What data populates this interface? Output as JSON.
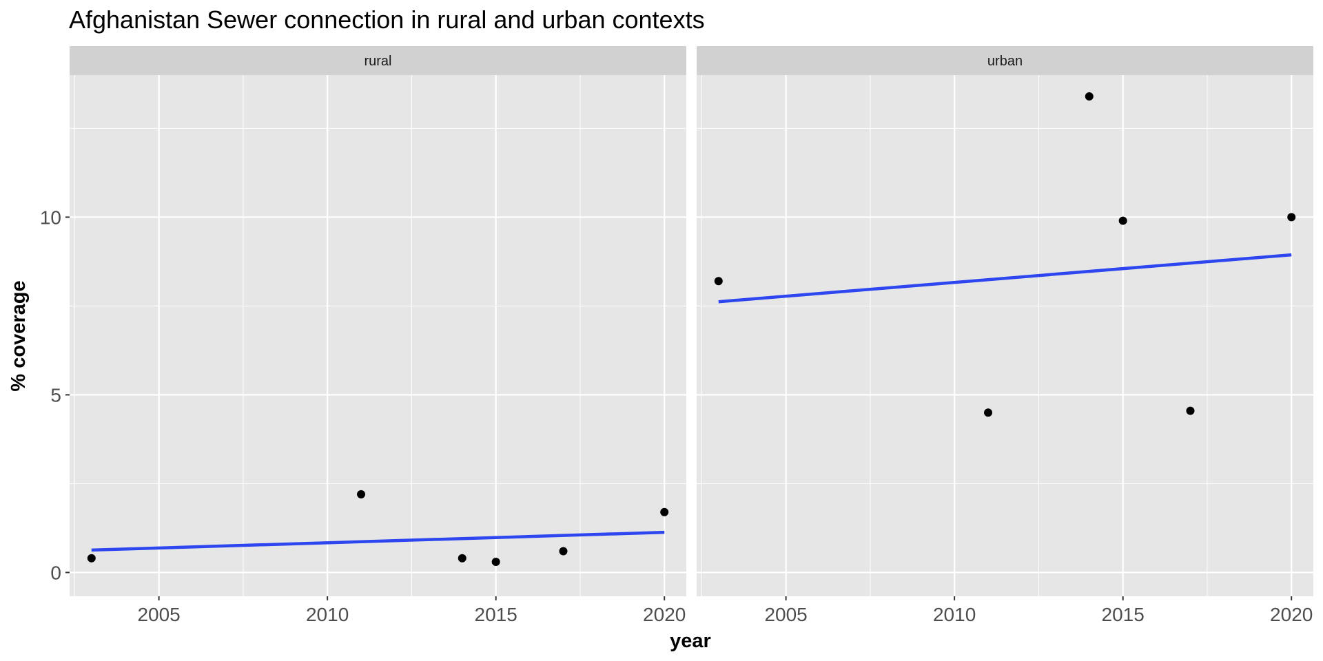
{
  "chart_data": {
    "type": "scatter",
    "title": "Afghanistan Sewer connection in rural and urban contexts",
    "xlabel": "year",
    "ylabel": "% coverage",
    "xlim": [
      2002.35,
      2020.65
    ],
    "ylim": [
      -0.67,
      14.0
    ],
    "x_ticks": [
      2005,
      2010,
      2015,
      2020
    ],
    "y_ticks": [
      0,
      5,
      10
    ],
    "grid": true,
    "panel_background": "#e6e6e6",
    "strip_background": "#d1d1d1",
    "point_color": "#000000",
    "trend_color": "#2e46f0",
    "panels": [
      {
        "label": "rural",
        "points": [
          {
            "x": 2003,
            "y": 0.4
          },
          {
            "x": 2011,
            "y": 2.2
          },
          {
            "x": 2014,
            "y": 0.4
          },
          {
            "x": 2015,
            "y": 0.3
          },
          {
            "x": 2017,
            "y": 0.6
          },
          {
            "x": 2020,
            "y": 1.7
          }
        ],
        "trend": [
          {
            "x": 2003,
            "y": 0.63
          },
          {
            "x": 2020,
            "y": 1.13
          }
        ]
      },
      {
        "label": "urban",
        "points": [
          {
            "x": 2003,
            "y": 8.2
          },
          {
            "x": 2011,
            "y": 4.5
          },
          {
            "x": 2014,
            "y": 13.4
          },
          {
            "x": 2015,
            "y": 9.9
          },
          {
            "x": 2017,
            "y": 4.55
          },
          {
            "x": 2020,
            "y": 10.0
          }
        ],
        "trend": [
          {
            "x": 2003,
            "y": 7.62
          },
          {
            "x": 2020,
            "y": 8.94
          }
        ]
      }
    ]
  }
}
